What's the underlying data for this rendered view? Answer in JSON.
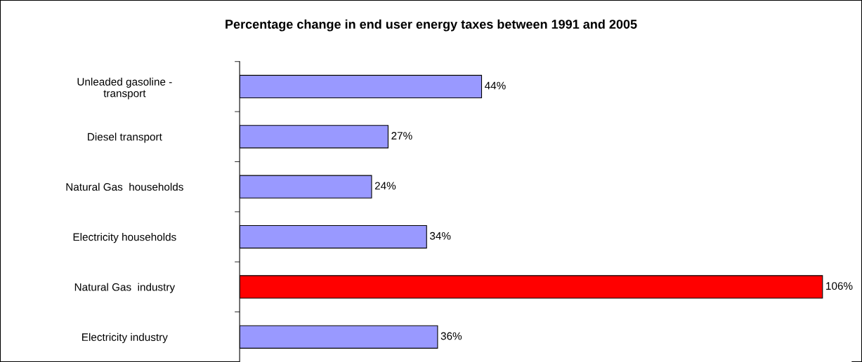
{
  "chart_data": {
    "type": "bar",
    "orientation": "horizontal",
    "title": "Percentage change in end user energy taxes between 1991 and 2005",
    "categories": [
      "Unleaded gasoline -\ntransport",
      "Diesel transport",
      "Natural Gas  households",
      "Electricity households",
      "Natural Gas  industry",
      "Electricity industry"
    ],
    "values": [
      44,
      27,
      24,
      34,
      106,
      36
    ],
    "colors": [
      "#9999ff",
      "#9999ff",
      "#9999ff",
      "#9999ff",
      "#ff0000",
      "#9999ff"
    ],
    "value_labels": [
      "44%",
      "27%",
      "24%",
      "34%",
      "106%",
      "36%"
    ],
    "grid": false,
    "legend": false
  }
}
